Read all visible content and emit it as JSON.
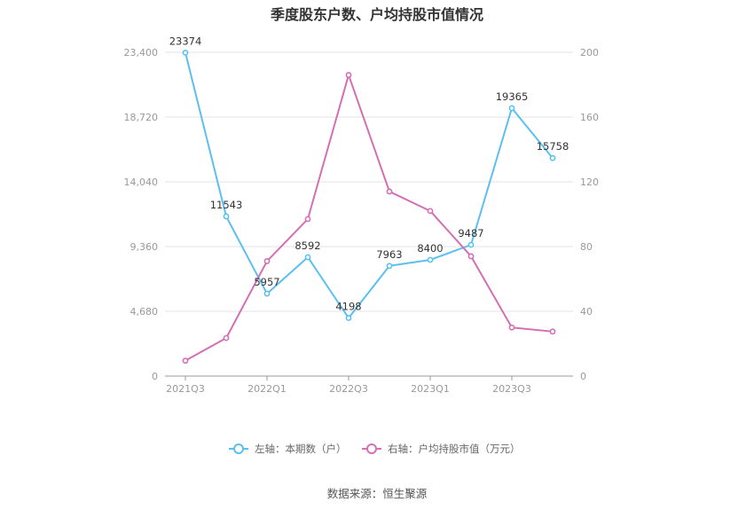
{
  "chart_data": {
    "type": "line",
    "title": "季度股东户数、户均持股市值情况",
    "categories": [
      "2021Q3",
      "2021Q4",
      "2022Q1",
      "2022Q2",
      "2022Q3",
      "2022Q4",
      "2023Q1",
      "2023Q2",
      "2023Q3",
      "2023Q4"
    ],
    "x_tick_labels": [
      "2021Q3",
      "2022Q1",
      "2022Q3",
      "2023Q1",
      "2023Q3"
    ],
    "left_axis": {
      "ticks": [
        "0",
        "4,680",
        "9,360",
        "14,040",
        "18,720",
        "23,400"
      ],
      "range": [
        0,
        23400
      ]
    },
    "right_axis": {
      "ticks": [
        "0",
        "40",
        "80",
        "120",
        "160",
        "200"
      ],
      "range": [
        0,
        200
      ]
    },
    "grid": true,
    "legend_position": "bottom",
    "series": [
      {
        "name": "左轴：本期数（户）",
        "axis": "left",
        "color": "#5bc0ef",
        "values": [
          23374,
          11543,
          5957,
          8592,
          4198,
          7963,
          8400,
          9487,
          19365,
          15758
        ],
        "labels": [
          "23374",
          "11543",
          "5957",
          "8592",
          "4198",
          "7963",
          "8400",
          "9487",
          "19365",
          "15758"
        ]
      },
      {
        "name": "右轴：户均持股市值（万元）",
        "axis": "right",
        "color": "#d36fb5",
        "values": [
          9.5,
          23.5,
          71,
          97,
          186,
          114,
          102,
          74,
          30,
          27.5
        ]
      }
    ]
  },
  "source": "数据来源：恒生聚源"
}
